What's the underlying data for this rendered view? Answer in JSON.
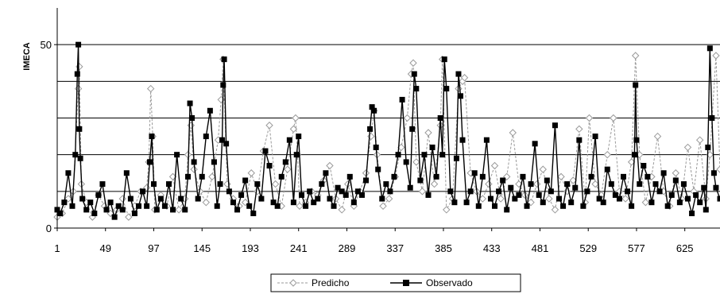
{
  "chart_data": {
    "type": "line",
    "ylabel": "IMECA",
    "ylim": [
      0,
      60
    ],
    "xlim": [
      1,
      660
    ],
    "yticks": [
      0,
      50
    ],
    "gridlines_y": [
      10,
      20,
      30,
      40,
      50
    ],
    "xticks": [
      1,
      49,
      97,
      145,
      193,
      241,
      289,
      337,
      385,
      433,
      481,
      529,
      577,
      625
    ],
    "legend_position": "bottom-center",
    "series": [
      {
        "name": "Predicho",
        "style": "dashed gray line with open diamond markers",
        "color": "#9a9a9a",
        "x": [
          1,
          6,
          12,
          17,
          22,
          23,
          25,
          30,
          36,
          42,
          48,
          54,
          60,
          66,
          72,
          78,
          84,
          90,
          92,
          94,
          96,
          98,
          104,
          110,
          116,
          122,
          128,
          131,
          134,
          137,
          143,
          149,
          155,
          161,
          164,
          166,
          170,
          176,
          182,
          188,
          194,
          200,
          206,
          212,
          218,
          224,
          230,
          236,
          238,
          240,
          242,
          248,
          254,
          260,
          266,
          272,
          278,
          284,
          290,
          296,
          302,
          308,
          313,
          316,
          319,
          325,
          331,
          337,
          343,
          349,
          353,
          355,
          358,
          364,
          370,
          376,
          382,
          384,
          388,
          394,
          400,
          404,
          406,
          412,
          418,
          424,
          430,
          436,
          442,
          448,
          454,
          460,
          466,
          472,
          478,
          484,
          490,
          496,
          502,
          508,
          514,
          520,
          526,
          530,
          536,
          542,
          548,
          554,
          560,
          566,
          572,
          576,
          580,
          586,
          592,
          598,
          604,
          610,
          616,
          622,
          628,
          634,
          640,
          646,
          650,
          656,
          660
        ],
        "values": [
          3,
          4,
          8,
          10,
          38,
          44,
          12,
          7,
          3,
          9,
          6,
          4,
          5,
          8,
          3,
          6,
          10,
          11,
          18,
          38,
          25,
          5,
          9,
          6,
          14,
          5,
          8,
          20,
          28,
          16,
          10,
          7,
          14,
          24,
          35,
          46,
          12,
          8,
          6,
          7,
          15,
          10,
          21,
          28,
          12,
          6,
          16,
          27,
          30,
          20,
          6,
          7,
          10,
          9,
          13,
          17,
          8,
          5,
          12,
          6,
          10,
          15,
          25,
          32,
          20,
          6,
          8,
          14,
          22,
          30,
          42,
          45,
          18,
          10,
          26,
          12,
          28,
          46,
          5,
          8,
          38,
          40,
          41,
          15,
          10,
          8,
          12,
          17,
          8,
          14,
          26,
          12,
          9,
          7,
          12,
          16,
          8,
          5,
          14,
          10,
          13,
          27,
          7,
          30,
          12,
          9,
          20,
          30,
          10,
          8,
          18,
          47,
          20,
          7,
          14,
          25,
          10,
          6,
          15,
          8,
          22,
          10,
          24,
          8,
          20,
          47,
          16
        ]
      },
      {
        "name": "Observado",
        "style": "solid black line with filled square markers",
        "color": "#000000",
        "x": [
          1,
          4,
          8,
          12,
          16,
          19,
          21,
          22,
          23,
          24,
          26,
          30,
          34,
          38,
          42,
          46,
          50,
          54,
          58,
          62,
          66,
          70,
          74,
          78,
          82,
          86,
          90,
          93,
          95,
          97,
          100,
          104,
          108,
          112,
          116,
          120,
          124,
          128,
          131,
          133,
          135,
          137,
          141,
          145,
          149,
          153,
          157,
          160,
          163,
          165,
          166,
          167,
          169,
          172,
          176,
          180,
          184,
          188,
          192,
          196,
          200,
          204,
          208,
          212,
          216,
          220,
          224,
          228,
          232,
          236,
          239,
          241,
          244,
          248,
          252,
          256,
          260,
          264,
          268,
          272,
          276,
          280,
          284,
          288,
          292,
          296,
          300,
          304,
          308,
          312,
          314,
          316,
          318,
          320,
          324,
          328,
          332,
          336,
          340,
          344,
          348,
          352,
          354,
          356,
          358,
          362,
          366,
          370,
          374,
          378,
          382,
          384,
          386,
          388,
          392,
          396,
          398,
          400,
          402,
          404,
          408,
          412,
          416,
          420,
          424,
          428,
          432,
          436,
          440,
          444,
          448,
          452,
          456,
          460,
          464,
          468,
          472,
          476,
          480,
          484,
          488,
          492,
          496,
          500,
          504,
          508,
          512,
          516,
          520,
          524,
          528,
          532,
          536,
          540,
          544,
          548,
          552,
          556,
          560,
          564,
          568,
          572,
          575,
          576,
          577,
          580,
          584,
          588,
          592,
          596,
          600,
          604,
          608,
          612,
          616,
          620,
          624,
          628,
          632,
          636,
          640,
          644,
          646,
          648,
          650,
          652,
          654,
          656,
          660
        ],
        "values": [
          5,
          4,
          7,
          15,
          6,
          20,
          42,
          50,
          27,
          19,
          8,
          5,
          7,
          4,
          9,
          12,
          5,
          7,
          3,
          6,
          5,
          15,
          8,
          4,
          6,
          10,
          6,
          18,
          25,
          12,
          5,
          8,
          6,
          12,
          5,
          20,
          8,
          5,
          14,
          34,
          30,
          18,
          8,
          14,
          25,
          32,
          18,
          6,
          12,
          24,
          39,
          46,
          23,
          10,
          7,
          5,
          9,
          13,
          6,
          4,
          12,
          8,
          21,
          17,
          7,
          6,
          14,
          18,
          24,
          7,
          20,
          25,
          9,
          6,
          10,
          7,
          8,
          12,
          15,
          8,
          6,
          11,
          10,
          9,
          14,
          7,
          10,
          9,
          13,
          27,
          33,
          32,
          22,
          16,
          8,
          12,
          10,
          14,
          20,
          35,
          18,
          11,
          27,
          42,
          38,
          13,
          20,
          9,
          22,
          14,
          30,
          20,
          46,
          38,
          10,
          7,
          19,
          42,
          36,
          24,
          7,
          10,
          15,
          6,
          14,
          24,
          8,
          6,
          10,
          13,
          5,
          11,
          8,
          9,
          14,
          6,
          12,
          23,
          9,
          7,
          13,
          10,
          28,
          8,
          6,
          12,
          7,
          11,
          24,
          6,
          10,
          14,
          25,
          8,
          7,
          16,
          12,
          9,
          8,
          14,
          10,
          6,
          20,
          39,
          24,
          12,
          17,
          14,
          7,
          12,
          10,
          15,
          6,
          9,
          13,
          7,
          12,
          8,
          4,
          9,
          7,
          11,
          5,
          22,
          49,
          30,
          15,
          11,
          8
        ]
      }
    ]
  }
}
